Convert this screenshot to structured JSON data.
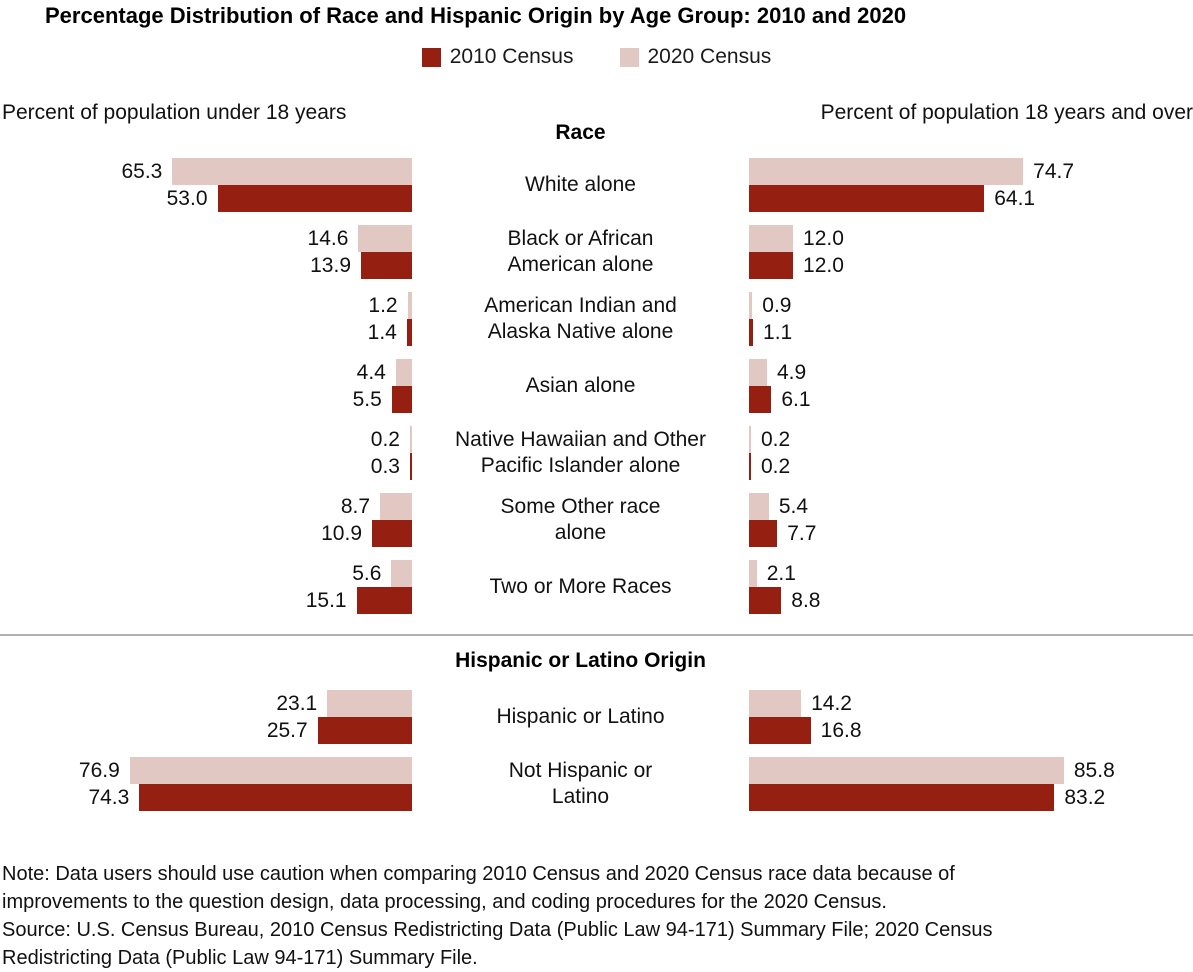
{
  "title": "Percentage Distribution of Race and Hispanic Origin by Age Group: 2010 and 2020",
  "legend": [
    {
      "label": "2010 Census",
      "color": "#952012"
    },
    {
      "label": "2020 Census",
      "color": "#e1c8c2"
    }
  ],
  "panels": {
    "left_header": "Percent of population under 18 years",
    "right_header": "Percent of population 18 years and over"
  },
  "sections": [
    {
      "header": "Race",
      "rows": [
        {
          "label_lines": [
            "White alone"
          ],
          "left": {
            "v2010": "53.0",
            "v2020": "65.3"
          },
          "right": {
            "v2010": "64.1",
            "v2020": "74.7"
          }
        },
        {
          "label_lines": [
            "Black or African",
            "American alone"
          ],
          "left": {
            "v2010": "13.9",
            "v2020": "14.6"
          },
          "right": {
            "v2010": "12.0",
            "v2020": "12.0"
          }
        },
        {
          "label_lines": [
            "American Indian and",
            "Alaska Native alone"
          ],
          "left": {
            "v2010": "1.4",
            "v2020": "1.2"
          },
          "right": {
            "v2010": "1.1",
            "v2020": "0.9"
          }
        },
        {
          "label_lines": [
            "Asian alone"
          ],
          "left": {
            "v2010": "5.5",
            "v2020": "4.4"
          },
          "right": {
            "v2010": "6.1",
            "v2020": "4.9"
          }
        },
        {
          "label_lines": [
            "Native Hawaiian and Other",
            "Pacific Islander alone"
          ],
          "left": {
            "v2010": "0.3",
            "v2020": "0.2"
          },
          "right": {
            "v2010": "0.2",
            "v2020": "0.2"
          }
        },
        {
          "label_lines": [
            "Some Other race",
            "alone"
          ],
          "left": {
            "v2010": "10.9",
            "v2020": "8.7"
          },
          "right": {
            "v2010": "7.7",
            "v2020": "5.4"
          }
        },
        {
          "label_lines": [
            "Two or More Races"
          ],
          "left": {
            "v2010": "15.1",
            "v2020": "5.6"
          },
          "right": {
            "v2010": "8.8",
            "v2020": "2.1"
          }
        }
      ]
    },
    {
      "header": "Hispanic or Latino Origin",
      "rows": [
        {
          "label_lines": [
            "Hispanic or Latino"
          ],
          "left": {
            "v2010": "25.7",
            "v2020": "23.1"
          },
          "right": {
            "v2010": "16.8",
            "v2020": "14.2"
          }
        },
        {
          "label_lines": [
            "Not Hispanic or",
            "Latino"
          ],
          "left": {
            "v2010": "74.3",
            "v2020": "76.9"
          },
          "right": {
            "v2010": "83.2",
            "v2020": "85.8"
          }
        }
      ]
    }
  ],
  "note": "Note: Data users should use caution when comparing 2010 Census and 2020 Census race data because of improvements to the question design, data processing, and coding procedures for the 2020 Census.",
  "source": "Source: U.S. Census Bureau, 2010 Census Redistricting Data (Public Law 94-171) Summary File; 2020 Census Redistricting Data (Public Law 94-171) Summary File.",
  "chart_data": {
    "type": "bar",
    "orientation": "horizontal",
    "layout": "paired-panels",
    "title": "Percentage Distribution of Race and Hispanic Origin by Age Group: 2010 and 2020",
    "legend_position": "top",
    "legend": [
      "2010 Census",
      "2020 Census"
    ],
    "colors": {
      "2010 Census": "#952012",
      "2020 Census": "#e1c8c2"
    },
    "categories": [
      "White alone",
      "Black or African American alone",
      "American Indian and Alaska Native alone",
      "Asian alone",
      "Native Hawaiian and Other Pacific Islander alone",
      "Some Other race alone",
      "Two or More Races",
      "Hispanic or Latino",
      "Not Hispanic or Latino"
    ],
    "category_groups": [
      {
        "header": "Race",
        "category_indices": [
          0,
          1,
          2,
          3,
          4,
          5,
          6
        ]
      },
      {
        "header": "Hispanic or Latino Origin",
        "category_indices": [
          7,
          8
        ]
      }
    ],
    "panels": [
      {
        "name": "Percent of population under 18 years",
        "direction": "right-to-left",
        "series": [
          {
            "name": "2010 Census",
            "values": [
              53.0,
              13.9,
              1.4,
              5.5,
              0.3,
              10.9,
              15.1,
              25.7,
              74.3
            ]
          },
          {
            "name": "2020 Census",
            "values": [
              65.3,
              14.6,
              1.2,
              4.4,
              0.2,
              8.7,
              5.6,
              23.1,
              76.9
            ]
          }
        ]
      },
      {
        "name": "Percent of population 18 years and over",
        "direction": "left-to-right",
        "series": [
          {
            "name": "2010 Census",
            "values": [
              64.1,
              12.0,
              1.1,
              6.1,
              0.2,
              7.7,
              8.8,
              16.8,
              83.2
            ]
          },
          {
            "name": "2020 Census",
            "values": [
              74.7,
              12.0,
              0.9,
              4.9,
              0.2,
              5.4,
              2.1,
              14.2,
              85.8
            ]
          }
        ]
      }
    ],
    "value_axis_unit": "percent",
    "xlim": [
      0,
      90
    ],
    "grid": false
  }
}
